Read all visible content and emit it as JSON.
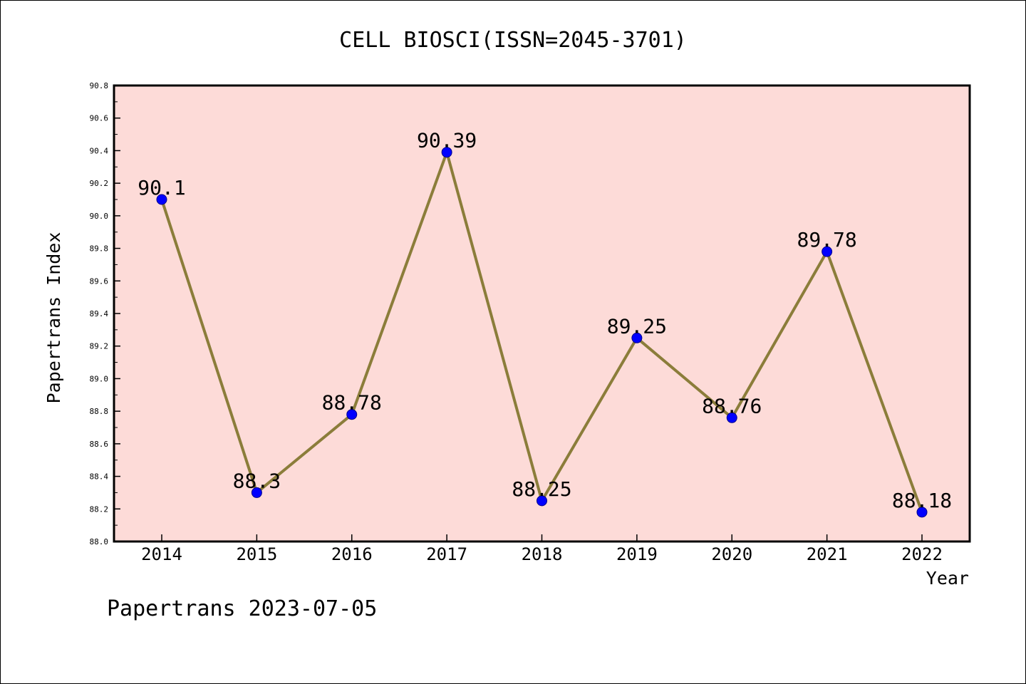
{
  "chart_data": {
    "type": "line",
    "title": "CELL BIOSCI(ISSN=2045-3701)",
    "xlabel": "Year",
    "ylabel": "Papertrans Index",
    "categories": [
      "2014",
      "2015",
      "2016",
      "2017",
      "2018",
      "2019",
      "2020",
      "2021",
      "2022"
    ],
    "series": [
      {
        "values": [
          90.1,
          88.3,
          88.78,
          90.39,
          88.25,
          89.25,
          88.76,
          89.78,
          88.18
        ]
      }
    ],
    "data_labels": [
      "90.1",
      "88.3",
      "88.78",
      "90.39",
      "88.25",
      "89.25",
      "88.76",
      "89.78",
      "88.18"
    ],
    "ylim": [
      88.0,
      90.8
    ],
    "yticks": [
      "88.0",
      "88.2",
      "88.4",
      "88.6",
      "88.8",
      "89.0",
      "89.2",
      "89.4",
      "89.6",
      "89.8",
      "90.0",
      "90.2",
      "90.4",
      "90.6",
      "90.8"
    ],
    "grid": false,
    "legend": "none",
    "colors": {
      "plot_background": "#fddbd8",
      "line": "#8b7d3a",
      "marker": "#0000ff",
      "marker_edge": "#00008b"
    }
  },
  "footer": "Papertrans 2023-07-05"
}
